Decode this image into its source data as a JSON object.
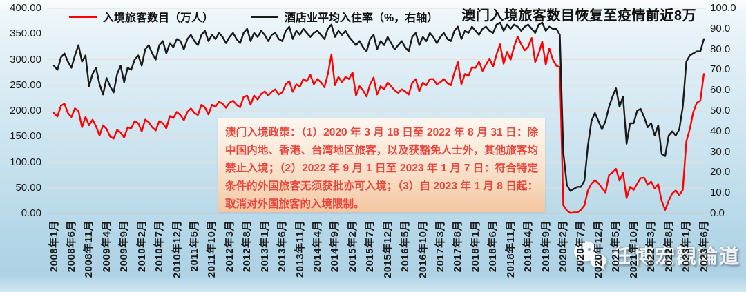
{
  "title": "澳门入境旅客数目恢复至疫情前近8万",
  "legend": {
    "items": [
      {
        "label": "入境旅客数目（万人）",
        "color": "#ff0000"
      },
      {
        "label": "酒店业平均入住率（%，右轴）",
        "color": "#1a1a1a"
      }
    ]
  },
  "annotation_box": {
    "text": "澳门入境政策：（1）2020 年 3 月 18 日至 2022 年 8 月 31 日：除中国内地、香港、台湾地区旅客，以及获豁免人士外，其他旅客均禁止入境；（2）2022 年 9 月 1 日至 2023 年 1 月 7 日：符合特定条件的外国旅客无须获批亦可入境；（3）自 2023 年 1 月 8 日起：取消对外国旅客的入境限制。",
    "text_color": "#e8453c"
  },
  "watermark": {
    "label": "任博宏觀論道",
    "icon": "wechat-icon"
  },
  "colors": {
    "visitors_line": "#ff0000",
    "occupancy_line": "#1a1a1a",
    "gridline": "#eadcd8",
    "axis_line": "#cfc2bf"
  },
  "chart_data": {
    "type": "line",
    "frequency": "monthly",
    "x_start": "2008年1月",
    "x_end": "2023年6月",
    "grid": "horizontal",
    "legend_position": "top",
    "left_axis": {
      "min": 0,
      "max": 400,
      "step": 50,
      "decimals": 2,
      "label": "入境旅客数目（万人）"
    },
    "right_axis": {
      "min": 0,
      "max": 100,
      "step": 10,
      "decimals": 1,
      "label": "酒店业平均入住率（%）"
    },
    "x_tick_every_n_months": 5,
    "x_tick_labels": [
      "2008年1月",
      "2008年6月",
      "2008年11月",
      "2009年4月",
      "2009年9月",
      "2010年2月",
      "2010年7月",
      "2010年12月",
      "2011年5月",
      "2011年10月",
      "2012年3月",
      "2012年8月",
      "2013年1月",
      "2013年6月",
      "2013年11月",
      "2014年4月",
      "2014年9月",
      "2015年2月",
      "2015年7月",
      "2015年12月",
      "2016年5月",
      "2016年10月",
      "2017年3月",
      "2017年8月",
      "2018年1月",
      "2018年6月",
      "2018年11月",
      "2019年4月",
      "2019年9月",
      "2020年2月",
      "2020年7月",
      "2020年12月",
      "2021年5月",
      "2021年10月",
      "2022年3月",
      "2022年8月",
      "2023年1月",
      "2023年6月"
    ],
    "series": [
      {
        "name": "入境旅客数目（万人）",
        "axis": "left",
        "color": "#ff0000",
        "values": [
          196,
          189,
          210,
          214,
          196,
          188,
          205,
          200,
          168,
          188,
          172,
          183,
          170,
          152,
          172,
          165,
          150,
          146,
          163,
          158,
          148,
          168,
          166,
          180,
          176,
          160,
          183,
          178,
          168,
          162,
          180,
          176,
          166,
          190,
          186,
          198,
          192,
          182,
          198,
          205,
          196,
          192,
          212,
          207,
          193,
          212,
          208,
          218,
          214,
          206,
          216,
          220,
          212,
          207,
          227,
          230,
          212,
          230,
          222,
          233,
          238,
          230,
          237,
          242,
          232,
          236,
          252,
          258,
          237,
          252,
          247,
          262,
          258,
          270,
          252,
          262,
          256,
          246,
          272,
          310,
          250,
          266,
          256,
          266,
          262,
          275,
          230,
          248,
          240,
          228,
          252,
          265,
          232,
          248,
          242,
          255,
          248,
          240,
          235,
          242,
          238,
          232,
          255,
          262,
          238,
          255,
          250,
          262,
          262,
          252,
          256,
          262,
          254,
          250,
          275,
          295,
          252,
          272,
          268,
          285,
          284,
          296,
          278,
          290,
          302,
          286,
          310,
          330,
          292,
          315,
          300,
          325,
          345,
          330,
          318,
          325,
          342,
          295,
          312,
          335,
          290,
          322,
          300,
          288,
          285,
          16,
          6,
          1,
          2,
          2,
          7,
          16,
          45,
          58,
          65,
          59,
          50,
          41,
          75,
          80,
          87,
          64,
          79,
          30,
          52,
          46,
          58,
          69,
          70,
          56,
          62,
          49,
          57,
          24,
          7,
          25,
          39,
          45,
          36,
          46,
          140,
          165,
          198,
          216,
          220,
          272
        ]
      },
      {
        "name": "酒店业平均入住率（%，右轴）",
        "axis": "right",
        "color": "#1a1a1a",
        "values": [
          72,
          70,
          76,
          78,
          74,
          71,
          77,
          82,
          74,
          77,
          62,
          68,
          71,
          63,
          58,
          66,
          62,
          59,
          68,
          72,
          64,
          71,
          70,
          75,
          77,
          72,
          80,
          82,
          78,
          75,
          82,
          84,
          78,
          83,
          81,
          85,
          84,
          80,
          85,
          87,
          84,
          82,
          87,
          89,
          84,
          87,
          85,
          88,
          86,
          83,
          86,
          88,
          85,
          83,
          88,
          90,
          84,
          88,
          86,
          89,
          87,
          84,
          87,
          88,
          85,
          84,
          89,
          91,
          85,
          89,
          87,
          90,
          88,
          86,
          88,
          89,
          87,
          85,
          90,
          92,
          86,
          89,
          87,
          89,
          86,
          84,
          82,
          84,
          81,
          79,
          85,
          87,
          80,
          84,
          82,
          86,
          83,
          80,
          82,
          84,
          81,
          79,
          86,
          88,
          82,
          86,
          84,
          88,
          86,
          83,
          86,
          88,
          85,
          84,
          89,
          91,
          85,
          89,
          88,
          91,
          89,
          87,
          90,
          91,
          89,
          88,
          92,
          93,
          89,
          92,
          90,
          92,
          91,
          89,
          91,
          92,
          90,
          88,
          92,
          93,
          89,
          91,
          90,
          90,
          87,
          30,
          14,
          11,
          12,
          13,
          13,
          16,
          33,
          45,
          49,
          45,
          41,
          45,
          52,
          57,
          61,
          52,
          57,
          34,
          44,
          44,
          50,
          51,
          47,
          42,
          44,
          38,
          43,
          29,
          28,
          38,
          40,
          38,
          41,
          52,
          74,
          77,
          78,
          79,
          79,
          85
        ]
      }
    ]
  }
}
